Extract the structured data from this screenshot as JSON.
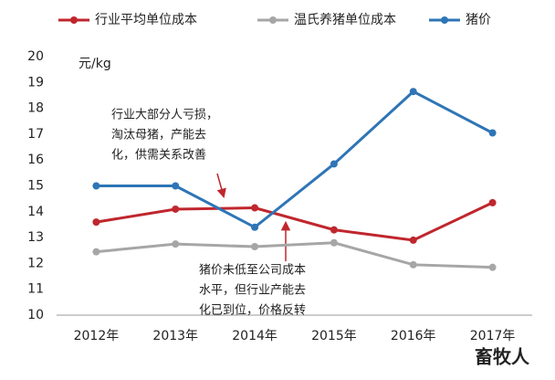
{
  "chart_data": {
    "type": "line",
    "categories": [
      "2012年",
      "2013年",
      "2014年",
      "2015年",
      "2016年",
      "2017年"
    ],
    "series": [
      {
        "name": "行业平均单位成本",
        "color": "#c0262d",
        "values": [
          13.6,
          14.1,
          14.15,
          13.3,
          12.9,
          14.35
        ]
      },
      {
        "name": "温氏养猪单位成本",
        "color": "#a6a6a6",
        "values": [
          12.45,
          12.75,
          12.65,
          12.8,
          11.95,
          11.85
        ]
      },
      {
        "name": "猪价",
        "color": "#2e75b6",
        "values": [
          15.0,
          15.0,
          13.4,
          15.85,
          18.65,
          17.05
        ]
      }
    ],
    "ylim": [
      10,
      20
    ],
    "yticks": [
      10,
      11,
      12,
      13,
      14,
      15,
      16,
      17,
      18,
      19,
      20
    ],
    "y_unit_label": "元/kg",
    "annotations": [
      {
        "lines": [
          "行业大部分人亏损，",
          "淘汰母猪，产能去",
          "化，供需关系改善"
        ]
      },
      {
        "lines": [
          "猪价未低至公司成本",
          "水平，但行业产能去",
          "化已到位，价格反转"
        ]
      }
    ],
    "watermark": "畜牧人"
  }
}
